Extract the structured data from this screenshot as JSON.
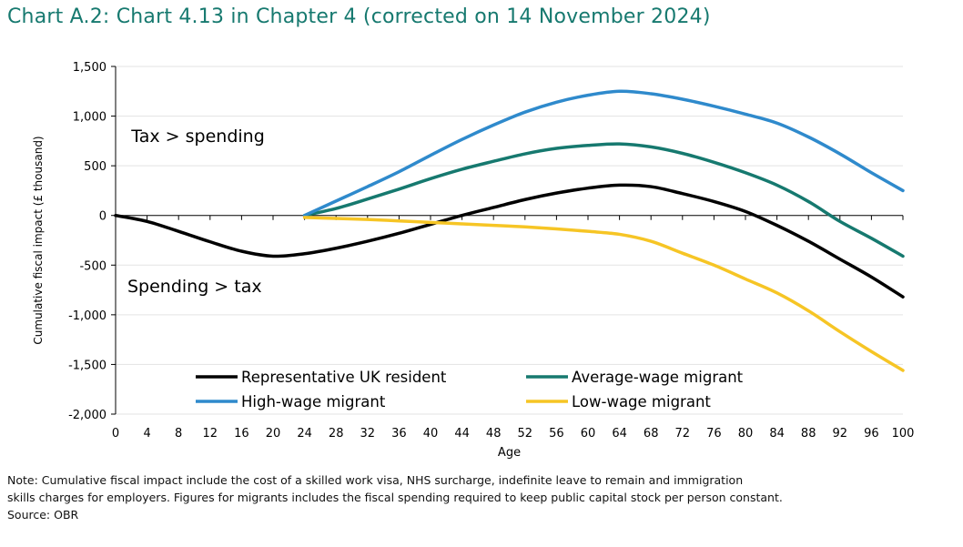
{
  "title": "Chart A.2: Chart 4.13 in Chapter 4 (corrected on 14 November 2024)",
  "note_line1": "Note: Cumulative fiscal impact include the cost of a skilled work visa, NHS surcharge, indefinite leave to remain and immigration",
  "note_line2": "skills charges for employers. Figures for migrants includes the fiscal spending required to keep public capital stock per person constant.",
  "source": "Source: OBR",
  "colors": {
    "title": "#16796f",
    "axis": "#000000",
    "grid": "#e3e3e3"
  },
  "chart_data": {
    "type": "line",
    "xlabel": "Age",
    "ylabel": "Cumulative fiscal impact (£ thousand)",
    "xlim": [
      0,
      100
    ],
    "ylim": [
      -2000,
      1500
    ],
    "x_ticks": [
      0,
      4,
      8,
      12,
      16,
      20,
      24,
      28,
      32,
      36,
      40,
      44,
      48,
      52,
      56,
      60,
      64,
      68,
      72,
      76,
      80,
      84,
      88,
      92,
      96,
      100
    ],
    "y_ticks": [
      1500,
      1000,
      500,
      0,
      -500,
      -1000,
      -1500,
      -2000
    ],
    "y_tick_labels": [
      "1,500",
      "1,000",
      "500",
      "0",
      "-500",
      "-1,000",
      "-1,500",
      "-2,000"
    ],
    "grid": "horizontal",
    "annotations": [
      {
        "text": "Tax > spending",
        "x": 2,
        "y": 740
      },
      {
        "text": "Spending > tax",
        "x": 1.5,
        "y": -770
      }
    ],
    "series": [
      {
        "name": "Representative UK resident",
        "color": "#000000",
        "x": [
          0,
          4,
          8,
          12,
          16,
          20,
          24,
          28,
          32,
          36,
          40,
          44,
          48,
          52,
          56,
          60,
          64,
          68,
          72,
          76,
          80,
          84,
          88,
          92,
          96,
          100
        ],
        "y": [
          0,
          -60,
          -160,
          -265,
          -360,
          -410,
          -385,
          -330,
          -260,
          -180,
          -90,
          0,
          80,
          160,
          225,
          275,
          305,
          290,
          220,
          140,
          40,
          -100,
          -260,
          -440,
          -620,
          -820
        ]
      },
      {
        "name": "Average-wage migrant",
        "color": "#16796f",
        "x": [
          24,
          28,
          32,
          36,
          40,
          44,
          48,
          52,
          56,
          60,
          64,
          68,
          72,
          76,
          80,
          84,
          88,
          92,
          96,
          100
        ],
        "y": [
          0,
          70,
          165,
          265,
          370,
          465,
          545,
          620,
          675,
          705,
          720,
          690,
          625,
          535,
          430,
          305,
          140,
          -60,
          -230,
          -410
        ]
      },
      {
        "name": "High-wage migrant",
        "color": "#2f8acc",
        "x": [
          24,
          28,
          32,
          36,
          40,
          44,
          48,
          52,
          56,
          60,
          64,
          68,
          72,
          76,
          80,
          84,
          88,
          92,
          96,
          100
        ],
        "y": [
          0,
          145,
          290,
          440,
          605,
          765,
          910,
          1040,
          1140,
          1210,
          1250,
          1225,
          1170,
          1100,
          1020,
          930,
          790,
          620,
          430,
          250
        ]
      },
      {
        "name": "Low-wage migrant",
        "color": "#f6c525",
        "x": [
          24,
          28,
          32,
          36,
          40,
          44,
          48,
          52,
          56,
          60,
          64,
          68,
          72,
          76,
          80,
          84,
          88,
          92,
          96,
          100
        ],
        "y": [
          -20,
          -30,
          -40,
          -55,
          -70,
          -85,
          -100,
          -115,
          -135,
          -160,
          -190,
          -260,
          -380,
          -500,
          -640,
          -780,
          -960,
          -1170,
          -1370,
          -1560
        ]
      }
    ],
    "legend": {
      "placement": "lower-center, inside plot",
      "columns": 2,
      "order": [
        "Representative UK resident",
        "Average-wage migrant",
        "High-wage migrant",
        "Low-wage migrant"
      ]
    }
  }
}
